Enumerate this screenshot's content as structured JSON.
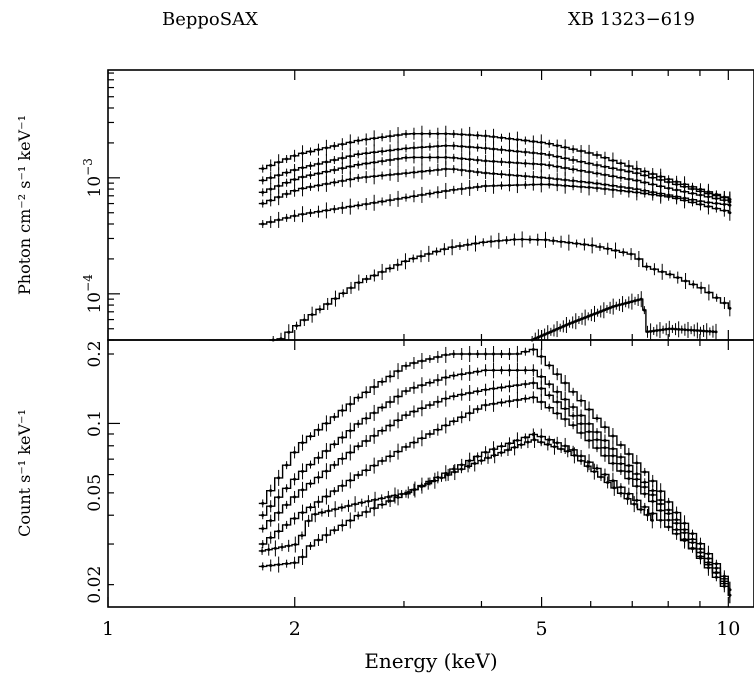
{
  "header": {
    "left": "BeppoSAX",
    "right": "XB 1323−619"
  },
  "chart_data": [
    {
      "id": "top",
      "type": "line",
      "xscale": "log",
      "yscale": "log",
      "xlim": [
        1,
        10
      ],
      "ylim": [
        4e-05,
        0.0085
      ],
      "ylabel": "Photon cm⁻² s⁻¹ keV⁻¹",
      "yticklabels": [
        {
          "value": 0.001,
          "base": "10",
          "exp": "−3"
        },
        {
          "value": 0.0001,
          "base": "10",
          "exp": "−4"
        }
      ],
      "series": [
        {
          "points": [
            [
              1.75,
              0.0012
            ],
            [
              2.0,
              0.0016
            ],
            [
              2.5,
              0.0021
            ],
            [
              3.0,
              0.0024
            ],
            [
              3.5,
              0.0024
            ],
            [
              4.0,
              0.0023
            ],
            [
              5.0,
              0.002
            ],
            [
              6.0,
              0.0016
            ],
            [
              7.0,
              0.0012
            ],
            [
              8.0,
              0.00095
            ],
            [
              9.0,
              0.00078
            ],
            [
              10.0,
              0.00065
            ]
          ]
        },
        {
          "points": [
            [
              1.75,
              0.00095
            ],
            [
              2.0,
              0.0012
            ],
            [
              2.5,
              0.0016
            ],
            [
              3.0,
              0.0018
            ],
            [
              3.5,
              0.0019
            ],
            [
              4.0,
              0.0018
            ],
            [
              5.0,
              0.0016
            ],
            [
              6.0,
              0.0013
            ],
            [
              7.0,
              0.0011
            ],
            [
              8.0,
              0.0009
            ],
            [
              9.0,
              0.00075
            ],
            [
              10.0,
              0.00065
            ]
          ]
        },
        {
          "points": [
            [
              1.75,
              0.00075
            ],
            [
              2.0,
              0.001
            ],
            [
              2.5,
              0.0013
            ],
            [
              3.0,
              0.0015
            ],
            [
              3.5,
              0.0015
            ],
            [
              4.0,
              0.0014
            ],
            [
              5.0,
              0.0013
            ],
            [
              6.0,
              0.0011
            ],
            [
              7.0,
              0.00095
            ],
            [
              8.0,
              0.0008
            ],
            [
              9.0,
              0.0007
            ],
            [
              10.0,
              0.00062
            ]
          ]
        },
        {
          "points": [
            [
              1.75,
              0.0006
            ],
            [
              2.0,
              0.0008
            ],
            [
              2.5,
              0.001
            ],
            [
              3.0,
              0.0011
            ],
            [
              3.5,
              0.0012
            ],
            [
              4.0,
              0.0011
            ],
            [
              5.0,
              0.001
            ],
            [
              6.0,
              0.0009
            ],
            [
              7.0,
              0.0008
            ],
            [
              8.0,
              0.0007
            ],
            [
              9.0,
              0.00062
            ],
            [
              10.0,
              0.00058
            ]
          ]
        },
        {
          "points": [
            [
              1.75,
              0.0004
            ],
            [
              2.0,
              0.00048
            ],
            [
              2.5,
              0.00058
            ],
            [
              3.0,
              0.00068
            ],
            [
              3.5,
              0.00078
            ],
            [
              4.0,
              0.00085
            ],
            [
              5.0,
              0.00088
            ],
            [
              6.0,
              0.00082
            ],
            [
              7.0,
              0.00075
            ],
            [
              8.0,
              0.00068
            ],
            [
              9.0,
              0.00058
            ],
            [
              10.0,
              0.0005
            ]
          ]
        },
        {
          "points": [
            [
              1.82,
              3.6e-05
            ],
            [
              2.0,
              5.5e-05
            ],
            [
              2.5,
              0.000125
            ],
            [
              3.0,
              0.000195
            ],
            [
              3.5,
              0.00025
            ],
            [
              4.0,
              0.00028
            ],
            [
              4.5,
              0.000295
            ],
            [
              5.0,
              0.000292
            ],
            [
              6.0,
              0.00026
            ],
            [
              7.0,
              0.000215
            ],
            [
              7.2,
              0.000175
            ],
            [
              8.0,
              0.000145
            ],
            [
              9.0,
              0.00011
            ],
            [
              10.0,
              7.5e-05
            ]
          ]
        },
        {
          "points": [
            [
              4.8,
              4e-05
            ],
            [
              5.5,
              5.5e-05
            ],
            [
              6.5,
              7.8e-05
            ],
            [
              7.2,
              9e-05
            ],
            [
              7.35,
              6e-05
            ],
            [
              7.35,
              4.7e-05
            ],
            [
              8.0,
              5e-05
            ],
            [
              9.0,
              4.8e-05
            ],
            [
              9.5,
              4.7e-05
            ]
          ]
        }
      ]
    },
    {
      "id": "bottom",
      "type": "line",
      "xscale": "log",
      "yscale": "log",
      "xlim": [
        1,
        11
      ],
      "ylim": [
        0.016,
        0.23
      ],
      "xlabel": "Energy (keV)",
      "ylabel": "Count s⁻¹ keV⁻¹",
      "xticklabels": [
        {
          "value": 1,
          "label": "1"
        },
        {
          "value": 2,
          "label": "2"
        },
        {
          "value": 5,
          "label": "5"
        },
        {
          "value": 10,
          "label": "10"
        }
      ],
      "yticklabels": [
        {
          "value": 0.2,
          "label": "0.2"
        },
        {
          "value": 0.1,
          "label": "0.1"
        },
        {
          "value": 0.05,
          "label": "0.05"
        },
        {
          "value": 0.02,
          "label": "0.02"
        }
      ],
      "series": [
        {
          "points": [
            [
              1.75,
              0.045
            ],
            [
              2.0,
              0.08
            ],
            [
              2.5,
              0.13
            ],
            [
              3.0,
              0.18
            ],
            [
              3.5,
              0.2
            ],
            [
              4.0,
              0.2
            ],
            [
              4.5,
              0.2
            ],
            [
              4.8,
              0.21
            ],
            [
              5.5,
              0.14
            ],
            [
              6.5,
              0.085
            ],
            [
              7.5,
              0.055
            ],
            [
              8.5,
              0.035
            ],
            [
              9.5,
              0.024
            ],
            [
              10.0,
              0.019
            ]
          ]
        },
        {
          "points": [
            [
              1.75,
              0.04
            ],
            [
              2.0,
              0.06
            ],
            [
              2.5,
              0.1
            ],
            [
              3.0,
              0.14
            ],
            [
              3.5,
              0.16
            ],
            [
              4.0,
              0.17
            ],
            [
              4.8,
              0.17
            ],
            [
              5.5,
              0.12
            ],
            [
              6.5,
              0.075
            ],
            [
              7.5,
              0.05
            ],
            [
              8.5,
              0.033
            ],
            [
              9.5,
              0.023
            ],
            [
              10.0,
              0.019
            ]
          ]
        },
        {
          "points": [
            [
              1.75,
              0.035
            ],
            [
              2.0,
              0.05
            ],
            [
              2.5,
              0.08
            ],
            [
              3.0,
              0.11
            ],
            [
              3.5,
              0.13
            ],
            [
              4.0,
              0.14
            ],
            [
              4.8,
              0.15
            ],
            [
              5.5,
              0.11
            ],
            [
              6.5,
              0.07
            ],
            [
              7.5,
              0.048
            ],
            [
              8.5,
              0.032
            ],
            [
              9.5,
              0.022
            ],
            [
              10.0,
              0.018
            ]
          ]
        },
        {
          "points": [
            [
              1.75,
              0.03
            ],
            [
              2.0,
              0.04
            ],
            [
              2.5,
              0.06
            ],
            [
              3.0,
              0.08
            ],
            [
              3.5,
              0.1
            ],
            [
              4.0,
              0.12
            ],
            [
              4.8,
              0.13
            ],
            [
              5.5,
              0.1
            ],
            [
              6.5,
              0.065
            ],
            [
              7.5,
              0.045
            ],
            [
              8.5,
              0.03
            ],
            [
              9.5,
              0.021
            ],
            [
              10.0,
              0.018
            ]
          ]
        },
        {
          "points": [
            [
              1.75,
              0.024
            ],
            [
              2.0,
              0.025
            ],
            [
              2.1,
              0.03
            ],
            [
              2.5,
              0.04
            ],
            [
              3.0,
              0.05
            ],
            [
              3.5,
              0.062
            ],
            [
              4.0,
              0.075
            ],
            [
              4.8,
              0.09
            ],
            [
              5.5,
              0.078
            ],
            [
              6.5,
              0.055
            ],
            [
              7.5,
              0.04
            ],
            [
              8.5,
              0.03
            ],
            [
              9.5,
              0.022
            ],
            [
              10.0,
              0.019
            ]
          ]
        },
        {
          "points": [
            [
              1.75,
              0.028
            ],
            [
              2.0,
              0.03
            ],
            [
              2.1,
              0.04
            ],
            [
              2.5,
              0.045
            ],
            [
              3.0,
              0.05
            ],
            [
              3.5,
              0.06
            ],
            [
              4.0,
              0.07
            ],
            [
              4.8,
              0.085
            ],
            [
              5.5,
              0.075
            ],
            [
              6.5,
              0.052
            ],
            [
              7.5,
              0.038
            ]
          ]
        }
      ]
    }
  ]
}
